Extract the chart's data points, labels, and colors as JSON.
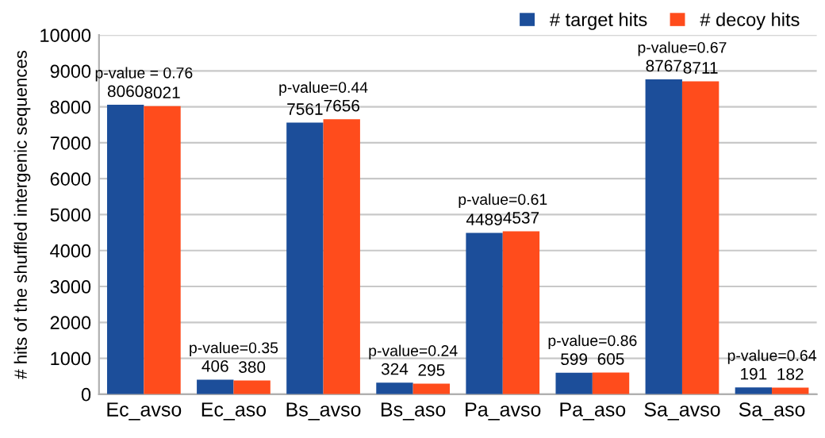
{
  "chart_data": {
    "type": "bar",
    "ylabel": "# hits of the shuffled intergenic sequences",
    "categories": [
      "Ec_avso",
      "Ec_aso",
      "Bs_avso",
      "Bs_aso",
      "Pa_avso",
      "Pa_aso",
      "Sa_avso",
      "Sa_aso"
    ],
    "series": [
      {
        "name": "# target hits",
        "color": "#1c4e9a",
        "values": [
          8060,
          406,
          7561,
          324,
          4489,
          599,
          8767,
          191
        ]
      },
      {
        "name": "# decoy hits",
        "color": "#ff4c1c",
        "values": [
          8021,
          380,
          7656,
          295,
          4537,
          605,
          8711,
          182
        ]
      }
    ],
    "ylim": [
      0,
      10000
    ],
    "yticks": [
      0,
      1000,
      2000,
      3000,
      4000,
      5000,
      6000,
      7000,
      8000,
      9000,
      10000
    ],
    "grid": "y",
    "legend": "top right",
    "data_labels": true,
    "annotations": [
      "p-value = 0.76",
      "p-value=0.35",
      "p-value=0.44",
      "p-value=0.24",
      "p-value=0.61",
      "p-value=0.86",
      "p-value=0.67",
      "p-value=0.64"
    ]
  }
}
